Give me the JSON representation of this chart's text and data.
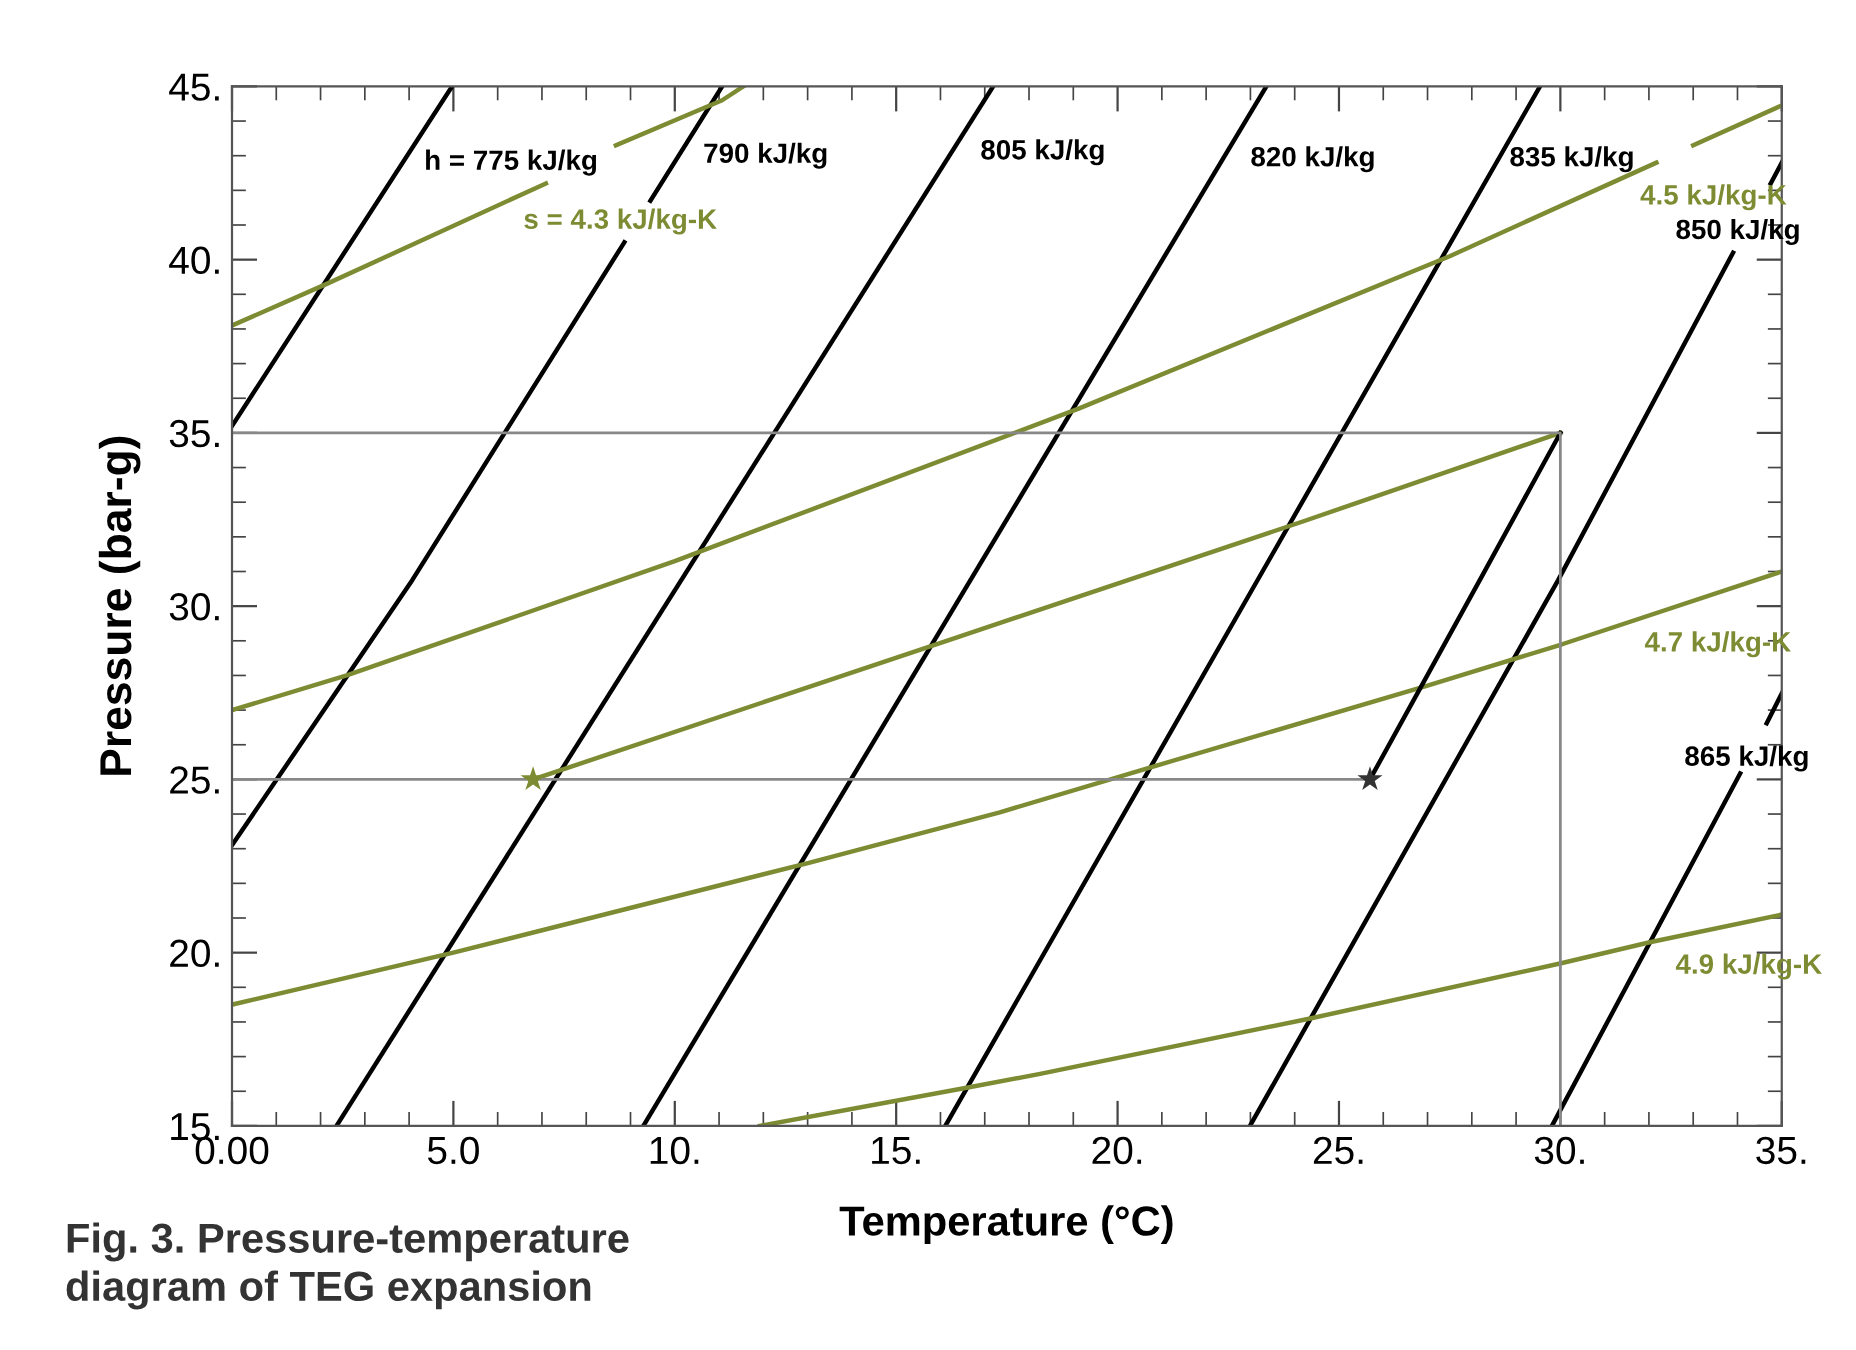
{
  "chart_data": {
    "type": "line",
    "xlabel": "Temperature (°C)",
    "ylabel": "Pressure (bar-g)",
    "xlim": [
      0,
      35
    ],
    "ylim": [
      15,
      45
    ],
    "xticks": [
      {
        "value": 0,
        "label": "0.00"
      },
      {
        "value": 5,
        "label": "5.0"
      },
      {
        "value": 10,
        "label": "10."
      },
      {
        "value": 15,
        "label": "15."
      },
      {
        "value": 20,
        "label": "20."
      },
      {
        "value": 25,
        "label": "25."
      },
      {
        "value": 30,
        "label": "30."
      },
      {
        "value": 35,
        "label": "35."
      }
    ],
    "yticks": [
      {
        "value": 15,
        "label": "15."
      },
      {
        "value": 20,
        "label": "20."
      },
      {
        "value": 25,
        "label": "25."
      },
      {
        "value": 30,
        "label": "30."
      },
      {
        "value": 35,
        "label": "35."
      },
      {
        "value": 40,
        "label": "40."
      },
      {
        "value": 45,
        "label": "45."
      }
    ],
    "grid": false,
    "legend": false,
    "series": [
      {
        "name": "h = 775 kJ/kg",
        "color": "#000000",
        "x": [
          0,
          4.97
        ],
        "values": [
          35.2,
          45
        ]
      },
      {
        "name": "790 kJ/kg",
        "color": "#000000",
        "x": [
          0,
          4.07,
          8.86,
          9.15,
          9.45,
          11.07
        ],
        "values": [
          23.1,
          30.75,
          40.5,
          null,
          41.7,
          45
        ]
      },
      {
        "name": "805 kJ/kg",
        "color": "#000000",
        "x": [
          2.36,
          17.19
        ],
        "values": [
          15,
          45
        ]
      },
      {
        "name": "820 kJ/kg",
        "color": "#000000",
        "x": [
          9.29,
          23.36
        ],
        "values": [
          15,
          45
        ]
      },
      {
        "name": "835 kJ/kg",
        "color": "#000000",
        "x": [
          16.11,
          29.54
        ],
        "values": [
          15,
          45
        ]
      },
      {
        "name": "850 kJ/kg",
        "color": "#000000",
        "x": [
          22.99,
          29.95,
          33.9,
          34.3,
          34.75,
          35
        ],
        "values": [
          15,
          30.75,
          40.2,
          null,
          42.2,
          42.8
        ]
      },
      {
        "name": "865 kJ/kg",
        "color": "#000000",
        "x": [
          29.81,
          34.06,
          34.3,
          34.66,
          35
        ],
        "values": [
          15,
          25.17,
          null,
          26.62,
          27.48
        ]
      },
      {
        "name": "s = 4.3 kJ/kg-K",
        "color": "#7d8b32",
        "x": [
          0,
          2.14,
          7.09,
          8.0,
          8.67,
          11.07,
          11.55
        ],
        "values": [
          38.1,
          39.3,
          42.2,
          null,
          43.3,
          44.6,
          45
        ]
      },
      {
        "name": "4.5 kJ/kg-K",
        "color": "#7d8b32",
        "x": [
          0,
          2.59,
          10,
          19.12,
          27.5,
          32.17,
          32.6,
          33.0,
          35
        ],
        "values": [
          27.0,
          28.0,
          31.3,
          35.7,
          40.1,
          42.8,
          null,
          43.3,
          44.45
        ]
      },
      {
        "color": "#7d8b32",
        "x": [
          6.8,
          16.14,
          24.2,
          30
        ],
        "values": [
          25.0,
          29.0,
          32.45,
          35
        ]
      },
      {
        "name": "4.7 kJ/kg-K",
        "color": "#7d8b32",
        "x": [
          0,
          5.0,
          13.05,
          17.34,
          20.88,
          26.98,
          30.04,
          35
        ],
        "values": [
          18.5,
          20.0,
          22.6,
          24.05,
          25.4,
          27.7,
          28.9,
          31.0
        ]
      },
      {
        "name": "4.9 kJ/kg-K",
        "color": "#7d8b32",
        "x": [
          11.92,
          16.59,
          18.25,
          24.35,
          30.04,
          32.02,
          35
        ],
        "values": [
          15,
          16.1,
          16.5,
          18.1,
          19.7,
          20.3,
          21.1
        ]
      },
      {
        "color": "#000000",
        "x": [
          25.7,
          28.18,
          30
        ],
        "values": [
          25.0,
          30.75,
          35
        ]
      },
      {
        "color": "#888888",
        "x": [
          0,
          30,
          30
        ],
        "values": [
          35,
          35,
          15
        ]
      },
      {
        "color": "#888888",
        "x": [
          0,
          25.7
        ],
        "values": [
          25,
          25
        ]
      },
      {
        "type": "scatter",
        "marker": "star",
        "color": "#7d8b32",
        "x": [
          6.8
        ],
        "values": [
          25.0
        ]
      },
      {
        "type": "scatter",
        "marker": "star",
        "color": "#333333",
        "x": [
          25.7
        ],
        "values": [
          25.0
        ]
      }
    ],
    "annotations": [
      "Fig. 3. Pressure-temperature\ndiagram of TEG expansion"
    ]
  }
}
